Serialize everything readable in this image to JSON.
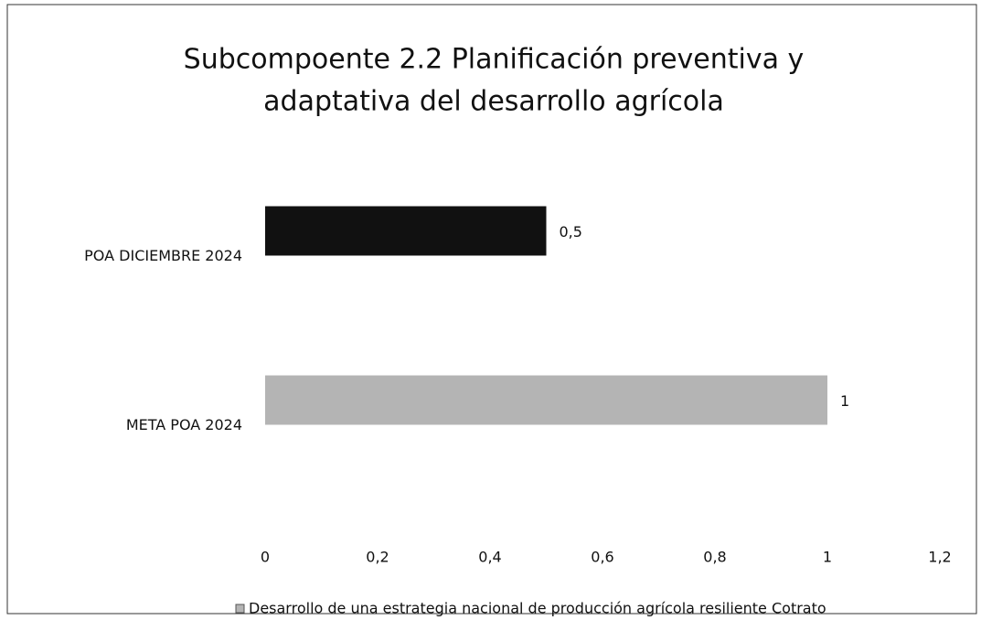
{
  "chart_data": {
    "type": "hbar",
    "title": [
      "Subcompoente 2.2 Planificación preventiva y",
      "adaptativa del desarrollo agrícola"
    ],
    "categories": [
      "POA DICIEMBRE 2024",
      "META POA 2024"
    ],
    "series": [
      {
        "name": "Desarrollo de una estrategia nacional de producción agrícola resiliente Cotrato",
        "colors": [
          "#111111",
          "#b4b4b4"
        ],
        "values": [
          0.5,
          1
        ],
        "value_labels": [
          "0,5",
          "1"
        ]
      }
    ],
    "xlim": [
      0,
      1.2
    ],
    "xticks": [
      0,
      {
        "value": 0.2,
        "label": "0,2"
      },
      {
        "value": 0.4,
        "label": "0,4"
      },
      {
        "value": 0.6,
        "label": "0,6"
      },
      {
        "value": 0.8,
        "label": "0,8"
      },
      1,
      {
        "value": 1.2,
        "label": "1,2"
      }
    ],
    "grid": false
  }
}
